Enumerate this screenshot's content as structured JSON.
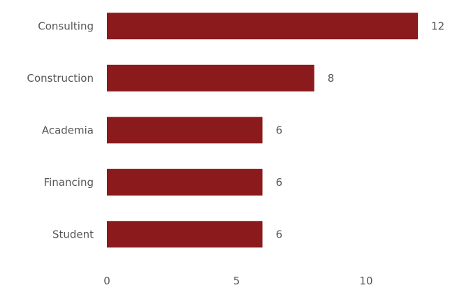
{
  "chart_data": {
    "type": "bar",
    "orientation": "horizontal",
    "categories": [
      "Consulting",
      "Construction",
      "Academia",
      "Financing",
      "Student"
    ],
    "values": [
      12,
      8,
      6,
      6,
      6
    ],
    "data_labels": [
      "12",
      "8",
      "6",
      "6",
      "6"
    ],
    "xlim": [
      0,
      12.05
    ],
    "xticks": [
      0,
      5,
      10
    ],
    "xtick_labels": [
      "0",
      "5",
      "10"
    ],
    "title": "",
    "xlabel": "",
    "ylabel": "",
    "grid": false,
    "legend": "none",
    "bar_color": "#8B1A1C"
  }
}
